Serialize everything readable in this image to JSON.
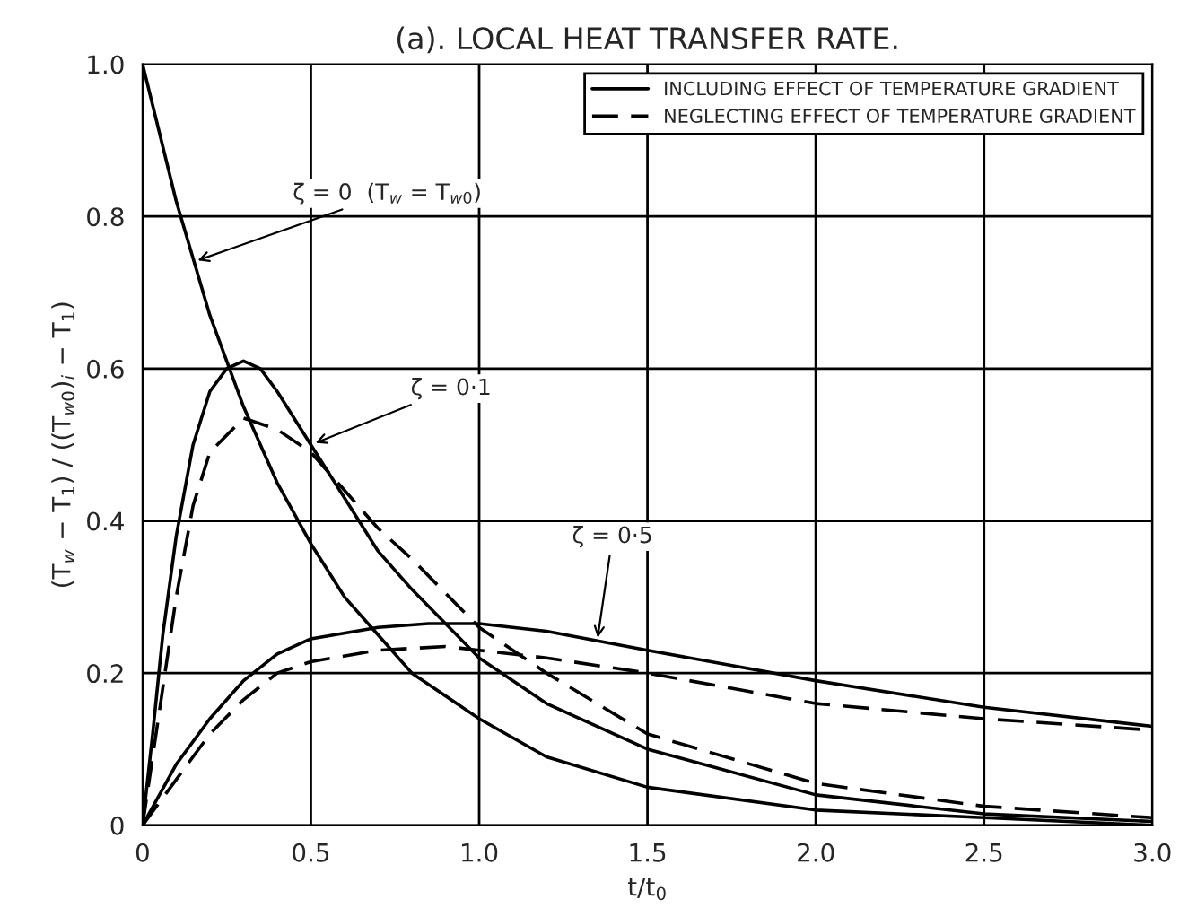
{
  "chart_data": {
    "type": "line",
    "title": "(a). LOCAL HEAT TRANSFER RATE.",
    "xlabel": "t/t$_{0}$",
    "ylabel": "(T$_{w}$ − T$_{1}$) / ((T$_{w0}$)$_{i}$ − T$_{1}$)",
    "xlim": [
      0,
      3.0
    ],
    "ylim": [
      0,
      1.0
    ],
    "xticks": [
      0,
      0.5,
      {
        "value": 1.0,
        "label": "1.0"
      },
      1.5,
      {
        "value": 2.0,
        "label": "2.0"
      },
      2.5,
      {
        "value": 3.0,
        "label": "3.0"
      }
    ],
    "yticks": [
      0,
      0.2,
      0.4,
      0.6,
      0.8,
      {
        "value": 1.0,
        "label": "1.0"
      }
    ],
    "grid": true,
    "legend": "top right",
    "marker": "none",
    "series": [
      {
        "color": "#000000",
        "line_style": "solid",
        "x": [
          0,
          0.1,
          0.2,
          0.3,
          0.4,
          0.5,
          0.6,
          0.7,
          0.8,
          1.0,
          1.2,
          1.5,
          2.0,
          2.5,
          3.0
        ],
        "values": [
          1.0,
          0.82,
          0.67,
          0.55,
          0.45,
          0.37,
          0.3,
          0.25,
          0.2,
          0.14,
          0.09,
          0.05,
          0.02,
          0.01,
          0.0
        ]
      },
      {
        "name": "INCLUDING EFFECT OF TEMPERATURE GRADIENT",
        "color": "#000000",
        "line_style": "solid",
        "x": [
          0,
          0.03,
          0.06,
          0.1,
          0.15,
          0.2,
          0.25,
          0.3,
          0.35,
          0.4,
          0.5,
          0.6,
          0.7,
          0.8,
          1.0,
          1.2,
          1.5,
          2.0,
          2.5,
          3.0
        ],
        "values": [
          0,
          0.12,
          0.25,
          0.38,
          0.5,
          0.57,
          0.6,
          0.61,
          0.6,
          0.57,
          0.5,
          0.43,
          0.36,
          0.31,
          0.22,
          0.16,
          0.1,
          0.04,
          0.015,
          0.005
        ]
      },
      {
        "name": "NEGLECTING EFFECT OF TEMPERATURE GRADIENT",
        "color": "#000000",
        "line_style": "dashed",
        "x": [
          0,
          0.05,
          0.1,
          0.15,
          0.2,
          0.3,
          0.4,
          0.5,
          0.6,
          0.7,
          0.8,
          1.0,
          1.2,
          1.5,
          2.0,
          2.5,
          3.0
        ],
        "values": [
          0,
          0.15,
          0.3,
          0.42,
          0.49,
          0.535,
          0.52,
          0.49,
          0.44,
          0.39,
          0.35,
          0.26,
          0.2,
          0.12,
          0.055,
          0.025,
          0.01
        ]
      },
      {
        "color": "#000000",
        "line_style": "solid",
        "x": [
          0,
          0.1,
          0.2,
          0.3,
          0.4,
          0.5,
          0.7,
          0.85,
          1.0,
          1.2,
          1.5,
          2.0,
          2.5,
          3.0
        ],
        "values": [
          0,
          0.08,
          0.14,
          0.19,
          0.225,
          0.245,
          0.26,
          0.265,
          0.265,
          0.255,
          0.23,
          0.19,
          0.155,
          0.13
        ]
      },
      {
        "color": "#000000",
        "line_style": "dashed",
        "x": [
          0,
          0.1,
          0.2,
          0.3,
          0.4,
          0.5,
          0.7,
          0.9,
          1.0,
          1.2,
          1.5,
          2.0,
          2.5,
          3.0
        ],
        "values": [
          0,
          0.06,
          0.12,
          0.165,
          0.2,
          0.215,
          0.23,
          0.235,
          0.23,
          0.22,
          0.2,
          0.16,
          0.14,
          0.125
        ]
      }
    ],
    "annotations": [
      {
        "text": "ζ = 0  (T$_{w}$ = T$_{w0}$)",
        "x": 0.15,
        "y": 0.74
      },
      {
        "text": "ζ = 0·1",
        "x": 0.5,
        "y": 0.5
      },
      {
        "text": "ζ = 0·5",
        "x": 1.35,
        "y": 0.24
      }
    ]
  }
}
